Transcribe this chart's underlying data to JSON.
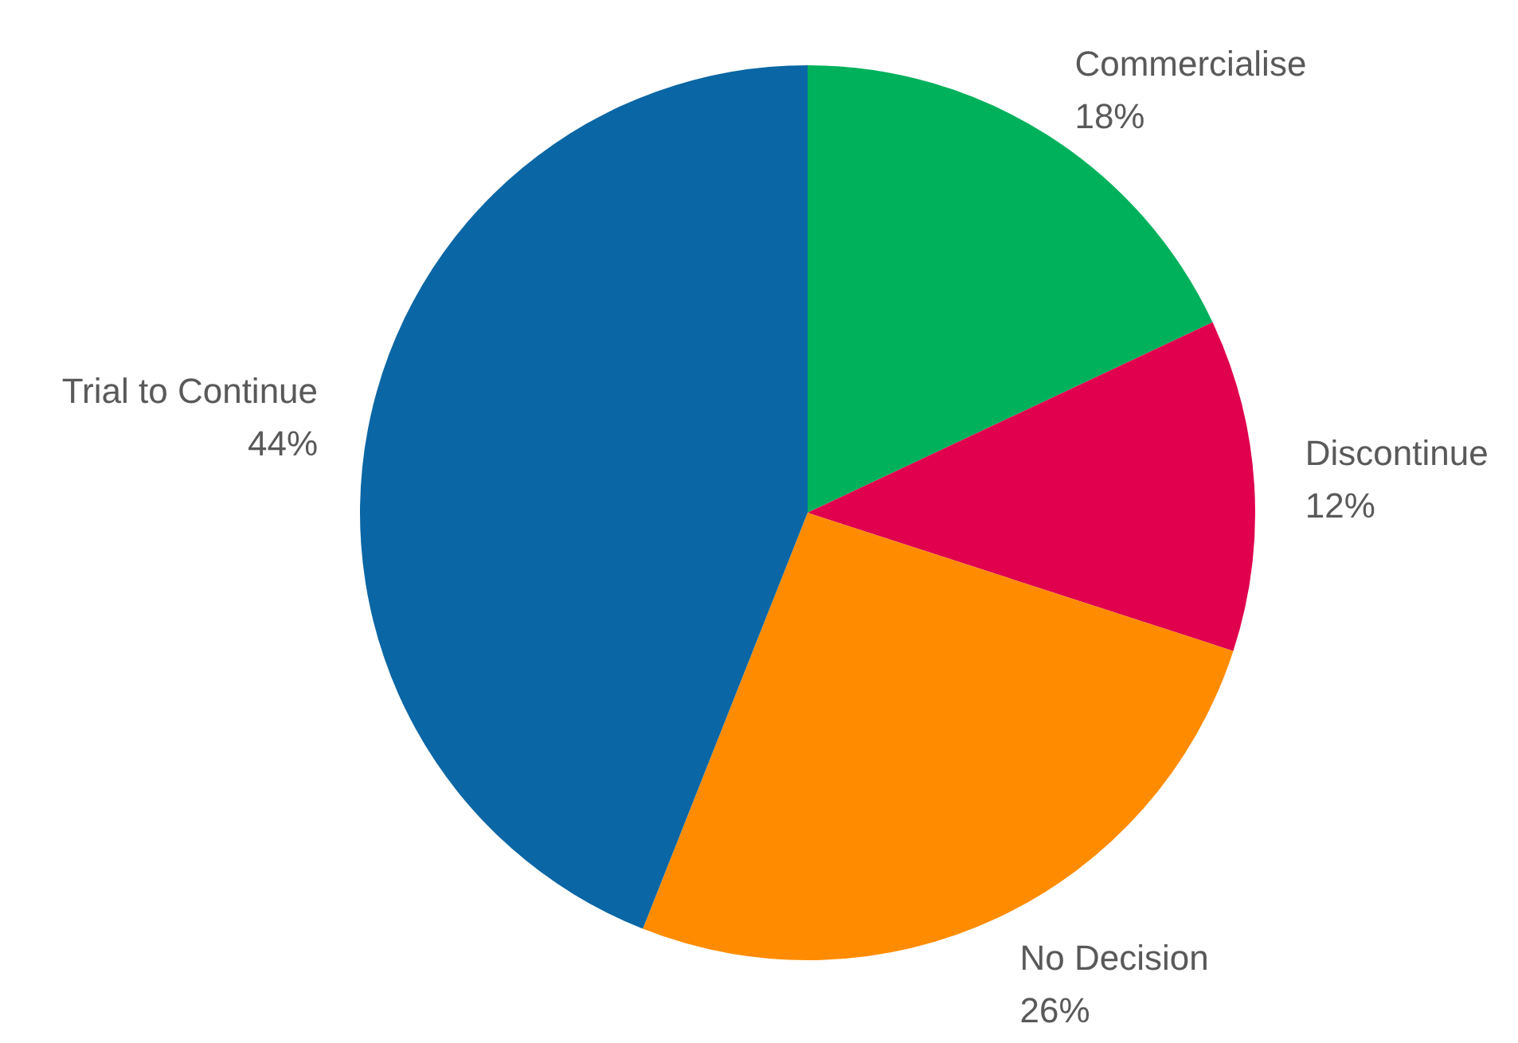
{
  "chart_data": {
    "type": "pie",
    "categories": [
      "Commercialise",
      "Discontinue",
      "No Decision",
      "Trial to Continue"
    ],
    "values": [
      18,
      12,
      26,
      44
    ],
    "value_labels": [
      "18%",
      "12%",
      "26%",
      "44%"
    ],
    "colors": [
      "#00b15c",
      "#e0004d",
      "#ff8c00",
      "#0a66a4"
    ],
    "legend": false
  }
}
